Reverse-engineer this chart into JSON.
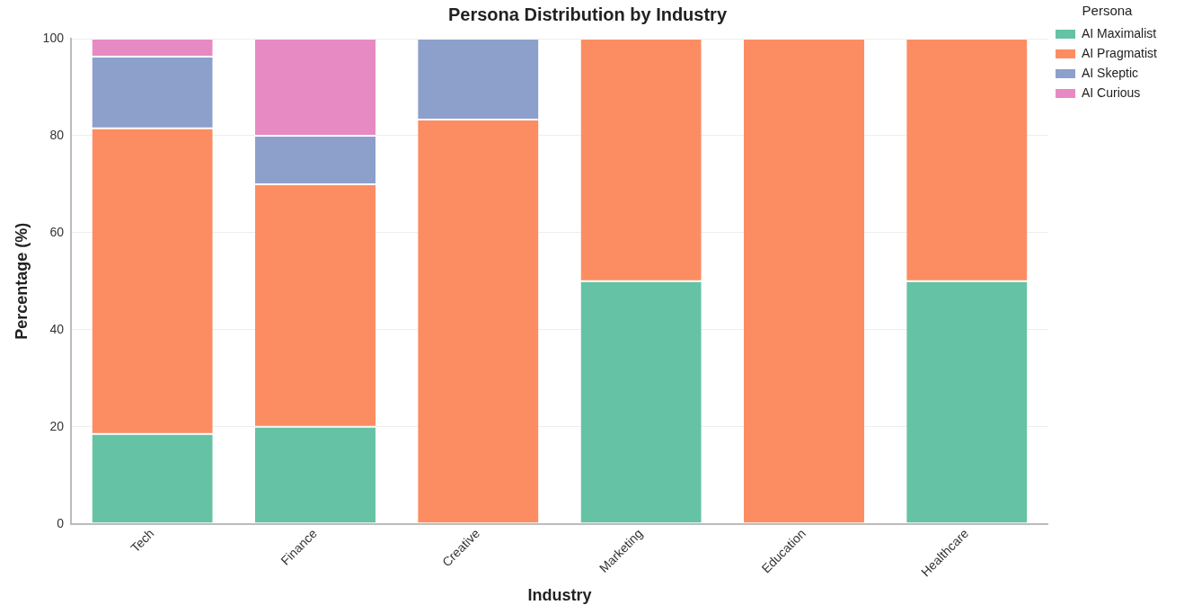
{
  "chart_data": {
    "type": "bar",
    "title": "Persona Distribution by Industry",
    "xlabel": "Industry",
    "ylabel": "Percentage (%)",
    "legend_title": "Persona",
    "categories": [
      "Tech",
      "Finance",
      "Creative",
      "Marketing",
      "Education",
      "Healthcare"
    ],
    "series": [
      {
        "name": "AI Maximalist",
        "color": "#66c2a5",
        "values": [
          18.5,
          20,
          0,
          50,
          0,
          50
        ]
      },
      {
        "name": "AI Pragmatist",
        "color": "#fc8d62",
        "values": [
          63,
          50,
          83.3,
          50,
          100,
          50
        ]
      },
      {
        "name": "AI Skeptic",
        "color": "#8da0cb",
        "values": [
          14.8,
          10,
          16.7,
          0,
          0,
          0
        ]
      },
      {
        "name": "AI Curious",
        "color": "#e78ac3",
        "values": [
          3.7,
          20,
          0,
          0,
          0,
          0
        ]
      }
    ],
    "stacked": true,
    "ylim": [
      0,
      100
    ],
    "yticks": [
      0,
      20,
      40,
      60,
      80,
      100
    ],
    "grid": "y",
    "legend": "top right"
  }
}
